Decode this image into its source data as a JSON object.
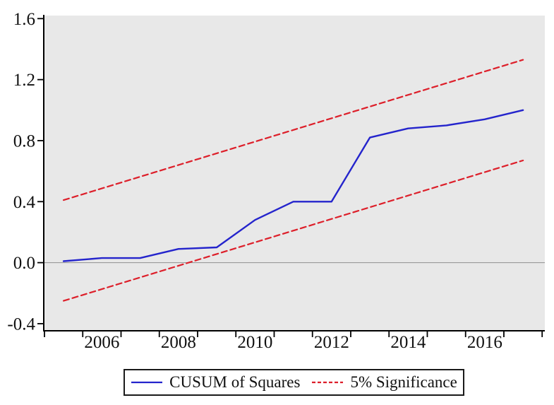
{
  "chart_data": {
    "type": "line",
    "title": "",
    "xlabel": "",
    "ylabel": "",
    "x": [
      2005,
      2006,
      2007,
      2008,
      2009,
      2010,
      2011,
      2012,
      2013,
      2014,
      2015,
      2016,
      2017
    ],
    "series": [
      {
        "name": "CUSUM of Squares",
        "style": "solid",
        "color": "#2424cc",
        "width": 2.4,
        "values": [
          0.01,
          0.03,
          0.03,
          0.09,
          0.1,
          0.28,
          0.4,
          0.4,
          0.82,
          0.88,
          0.9,
          0.94,
          1.0
        ]
      },
      {
        "name": "5% Significance (upper bound)",
        "style": "dashed",
        "color": "#dd1f2a",
        "width": 2.2,
        "x": [
          2005,
          2017
        ],
        "values": [
          0.41,
          1.33
        ]
      },
      {
        "name": "5% Significance (lower bound)",
        "style": "dashed",
        "color": "#dd1f2a",
        "width": 2.2,
        "x": [
          2005,
          2017
        ],
        "values": [
          -0.25,
          0.67
        ]
      }
    ],
    "xlim": [
      2004.5,
      2017.57
    ],
    "ylim": [
      -0.442,
      1.62
    ],
    "y_ticks": {
      "values": [
        1.6,
        1.2,
        0.8,
        0.4,
        0.0,
        -0.4
      ],
      "labels": [
        "1.6",
        "1.2",
        "0.8",
        "0.4",
        "0.0",
        "-0.4"
      ]
    },
    "x_ticks": {
      "minor_start": 2004.5,
      "minor_end": 2017.5,
      "minor_step": 1,
      "label_years": [
        2006,
        2008,
        2010,
        2012,
        2014,
        2016
      ],
      "labels": [
        "2006",
        "2008",
        "2010",
        "2012",
        "2014",
        "2016"
      ]
    },
    "grid": false,
    "zero_line": true,
    "legend_position": "bottom",
    "colors": {
      "plot_bg": "#e8e8e8",
      "zero_line": "#909090",
      "axis": "#000000",
      "text": "#111111"
    }
  },
  "legend": {
    "items": [
      {
        "label": "CUSUM of Squares",
        "style": "solid",
        "color": "#2424cc"
      },
      {
        "label": "5% Significance",
        "style": "dashed",
        "color": "#dd1f2a"
      }
    ]
  }
}
